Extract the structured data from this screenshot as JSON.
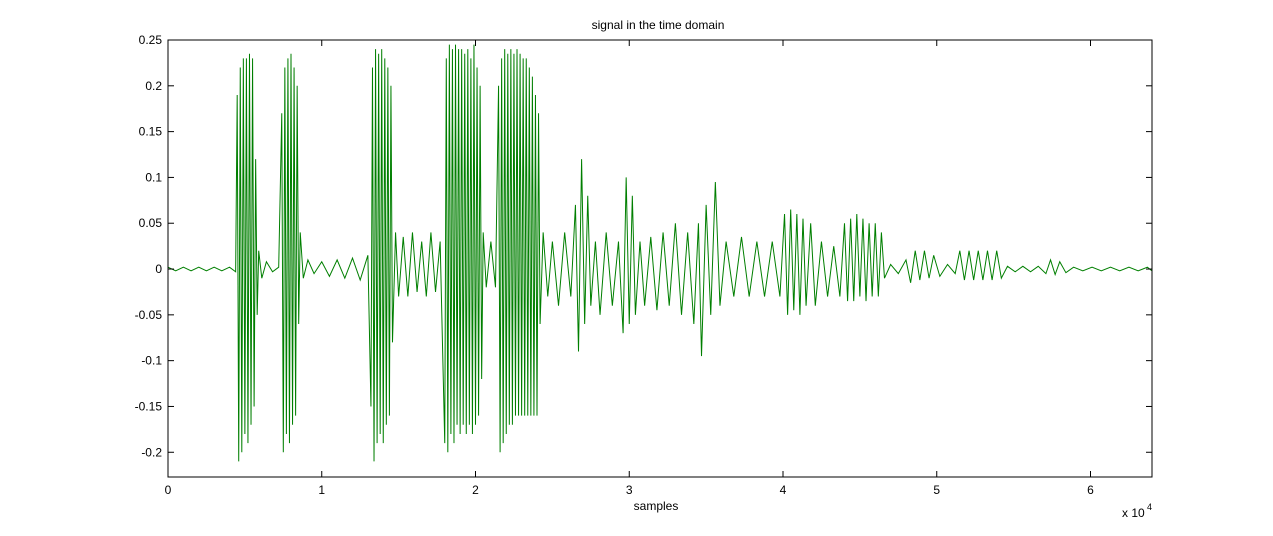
{
  "chart_data": {
    "type": "line",
    "title": "signal in the time domain",
    "x_label": "samples",
    "x_exponent": {
      "base": "x 10",
      "power": "4"
    },
    "color": "#007f00",
    "grid": false,
    "xlim": [
      0,
      64000
    ],
    "xticks": [
      0,
      {
        "value": 10000,
        "label": "1"
      },
      {
        "value": 20000,
        "label": "2"
      },
      {
        "value": 30000,
        "label": "3"
      },
      {
        "value": 40000,
        "label": "4"
      },
      {
        "value": 50000,
        "label": "5"
      },
      {
        "value": 60000,
        "label": "6"
      }
    ],
    "ylim": [
      -0.227,
      0.25
    ],
    "yticks": [
      -0.2,
      -0.15,
      -0.1,
      -0.05,
      0,
      0.05,
      0.1,
      0.15,
      0.2,
      0.25
    ],
    "x": [
      0,
      500,
      1000,
      1500,
      2000,
      2500,
      3000,
      3500,
      4000,
      4400,
      4500,
      4600,
      4700,
      4800,
      4900,
      5000,
      5100,
      5200,
      5300,
      5400,
      5500,
      5600,
      5700,
      5800,
      5900,
      6100,
      6400,
      6800,
      7200,
      7400,
      7500,
      7600,
      7700,
      7800,
      7900,
      8000,
      8100,
      8200,
      8300,
      8400,
      8500,
      8600,
      8800,
      9100,
      9500,
      10000,
      10500,
      11000,
      11500,
      12000,
      12500,
      13000,
      13200,
      13300,
      13400,
      13500,
      13600,
      13700,
      13800,
      13900,
      14000,
      14100,
      14200,
      14300,
      14400,
      14500,
      14600,
      14800,
      15000,
      15300,
      15600,
      15900,
      16200,
      16500,
      16800,
      17100,
      17400,
      17700,
      18000,
      18100,
      18200,
      18300,
      18400,
      18500,
      18600,
      18700,
      18800,
      18900,
      19000,
      19100,
      19200,
      19300,
      19400,
      19500,
      19600,
      19700,
      19800,
      19900,
      20000,
      20100,
      20200,
      20300,
      20400,
      20500,
      20700,
      21000,
      21300,
      21500,
      21600,
      21700,
      21800,
      21900,
      22000,
      22100,
      22200,
      22300,
      22400,
      22500,
      22600,
      22700,
      22800,
      22900,
      23000,
      23100,
      23200,
      23300,
      23400,
      23500,
      23600,
      23700,
      23800,
      23900,
      24000,
      24100,
      24200,
      24400,
      24700,
      25000,
      25400,
      25800,
      26200,
      26500,
      26700,
      26900,
      27100,
      27300,
      27500,
      27800,
      28100,
      28500,
      28900,
      29300,
      29600,
      29800,
      30000,
      30200,
      30400,
      30700,
      31000,
      31400,
      31800,
      32200,
      32600,
      33000,
      33400,
      33800,
      34200,
      34500,
      34700,
      35000,
      35300,
      35600,
      35900,
      36300,
      36800,
      37300,
      37800,
      38300,
      38800,
      39300,
      39800,
      40100,
      40300,
      40500,
      40700,
      40900,
      41100,
      41300,
      41500,
      41800,
      42100,
      42500,
      42900,
      43300,
      43700,
      44000,
      44200,
      44400,
      44600,
      44800,
      45000,
      45200,
      45400,
      45600,
      45800,
      46000,
      46200,
      46400,
      46600,
      47000,
      47500,
      48000,
      48300,
      48600,
      48900,
      49200,
      49500,
      49800,
      50200,
      50700,
      51200,
      51500,
      51800,
      52100,
      52400,
      52700,
      53000,
      53300,
      53600,
      53900,
      54200,
      54600,
      55100,
      55600,
      56100,
      56600,
      57100,
      57400,
      57700,
      58000,
      58400,
      58900,
      59500,
      60100,
      60700,
      61300,
      61900,
      62500,
      63100,
      63700,
      64000
    ],
    "values": [
      0.002,
      -0.002,
      0.002,
      -0.002,
      0.002,
      -0.002,
      0.002,
      -0.002,
      0.002,
      -0.003,
      0.19,
      -0.21,
      0.22,
      -0.2,
      0.23,
      -0.18,
      0.23,
      -0.19,
      0.235,
      -0.17,
      0.23,
      -0.15,
      0.12,
      -0.05,
      0.02,
      -0.01,
      0.008,
      -0.003,
      0.002,
      0.17,
      -0.2,
      0.22,
      -0.18,
      0.23,
      -0.19,
      0.235,
      -0.17,
      0.22,
      -0.16,
      0.2,
      -0.06,
      0.04,
      -0.01,
      0.01,
      -0.005,
      0.008,
      -0.008,
      0.01,
      -0.01,
      0.012,
      -0.012,
      0.015,
      -0.15,
      0.22,
      -0.21,
      0.24,
      -0.19,
      0.235,
      -0.18,
      0.24,
      -0.19,
      0.23,
      -0.17,
      0.22,
      -0.16,
      0.2,
      -0.08,
      0.04,
      -0.03,
      0.035,
      -0.03,
      0.04,
      -0.025,
      0.03,
      -0.03,
      0.04,
      -0.025,
      0.03,
      -0.19,
      0.23,
      -0.2,
      0.245,
      -0.18,
      0.24,
      -0.19,
      0.245,
      -0.17,
      0.24,
      -0.18,
      0.24,
      -0.17,
      0.235,
      -0.18,
      0.24,
      -0.17,
      0.23,
      -0.18,
      0.245,
      -0.17,
      0.22,
      -0.16,
      0.2,
      -0.12,
      0.04,
      -0.02,
      0.03,
      -0.02,
      0.2,
      -0.2,
      0.23,
      -0.19,
      0.24,
      -0.18,
      0.235,
      -0.17,
      0.24,
      -0.17,
      0.235,
      -0.16,
      0.24,
      -0.16,
      0.235,
      -0.16,
      0.23,
      -0.16,
      0.23,
      -0.16,
      0.22,
      -0.16,
      0.21,
      -0.16,
      0.19,
      -0.16,
      0.17,
      -0.06,
      0.04,
      -0.03,
      0.03,
      -0.04,
      0.04,
      -0.03,
      0.07,
      -0.09,
      0.12,
      -0.06,
      0.08,
      -0.04,
      0.03,
      -0.05,
      0.04,
      -0.04,
      0.03,
      -0.07,
      0.1,
      -0.06,
      0.08,
      -0.05,
      0.03,
      -0.04,
      0.035,
      -0.045,
      0.04,
      -0.04,
      0.05,
      -0.05,
      0.04,
      -0.06,
      0.05,
      -0.095,
      0.07,
      -0.05,
      0.095,
      -0.04,
      0.03,
      -0.03,
      0.035,
      -0.03,
      0.03,
      -0.03,
      0.03,
      -0.03,
      0.06,
      -0.05,
      0.065,
      -0.045,
      0.06,
      -0.05,
      0.055,
      -0.04,
      0.05,
      -0.04,
      0.03,
      -0.03,
      0.025,
      -0.03,
      0.05,
      -0.035,
      0.055,
      -0.035,
      0.06,
      -0.03,
      0.055,
      -0.035,
      0.05,
      -0.03,
      0.05,
      -0.03,
      0.04,
      -0.01,
      0.005,
      -0.005,
      0.01,
      -0.015,
      0.02,
      -0.012,
      0.02,
      -0.01,
      0.015,
      -0.008,
      0.005,
      -0.005,
      0.02,
      -0.012,
      0.02,
      -0.012,
      0.02,
      -0.012,
      0.02,
      -0.012,
      0.02,
      -0.01,
      0.003,
      -0.003,
      0.003,
      -0.003,
      0.003,
      -0.005,
      0.01,
      -0.006,
      0.008,
      -0.004,
      0.002,
      -0.002,
      0.002,
      -0.002,
      0.002,
      -0.002,
      0.002,
      -0.002,
      0.002,
      -0.002
    ]
  }
}
